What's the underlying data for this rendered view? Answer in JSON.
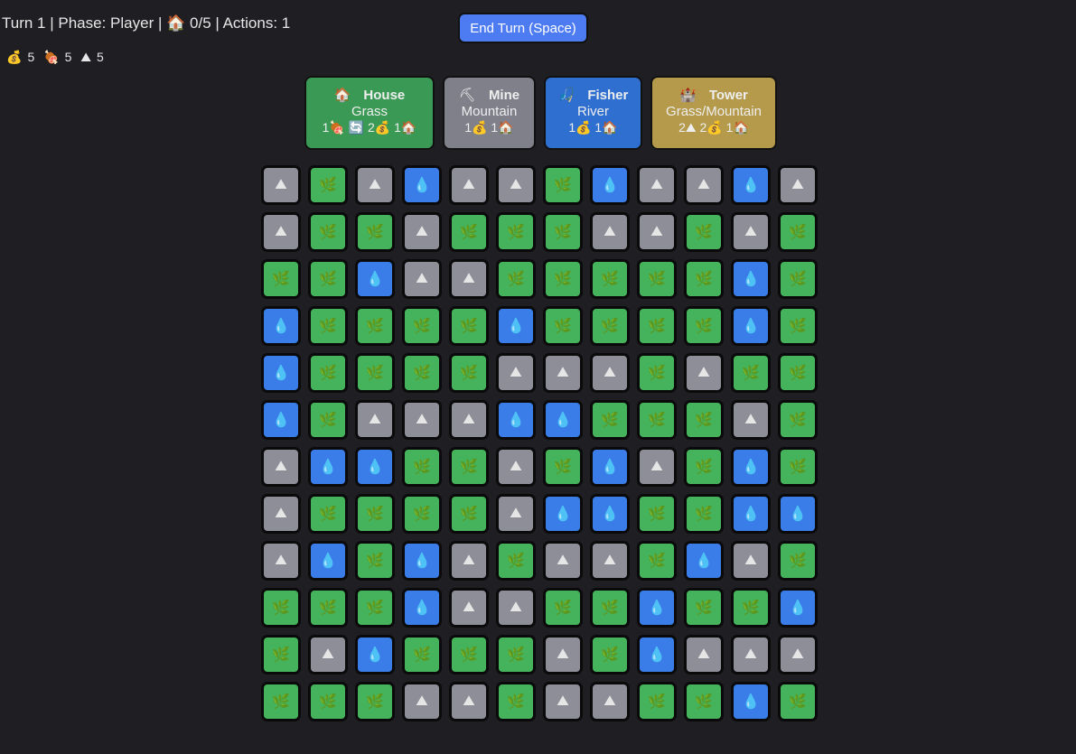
{
  "status": {
    "turn": "Turn 1",
    "phase": "Phase: Player",
    "houses_icon": "🏠",
    "houses": "0/5",
    "actions": "Actions: 1"
  },
  "resources": [
    {
      "icon": "💰",
      "name": "gold",
      "value": "5"
    },
    {
      "icon": "🍖",
      "name": "food",
      "value": "5"
    },
    {
      "icon": "⛰",
      "name": "stone",
      "value": "5"
    }
  ],
  "end_turn_label": "End Turn (Space)",
  "buildings": [
    {
      "icon": "🏠",
      "name": "House",
      "terrain": "Grass",
      "cost": "1🍖 🔄 2💰 1🏠",
      "color": "#3a9a55",
      "width": 144
    },
    {
      "icon": "⛏",
      "name": "Mine",
      "terrain": "Mountain",
      "cost": "1💰 1🏠",
      "color": "#80808b",
      "width": 103
    },
    {
      "icon": "🎣",
      "name": "Fisher",
      "terrain": "River",
      "cost": "1💰 1🏠",
      "color": "#2f6fd0",
      "width": 109
    },
    {
      "icon": "🏰",
      "name": "Tower",
      "terrain": "Grass/Mountain",
      "cost": "2⛰ 2💰 1🏠",
      "color": "#b49a4a",
      "width": 140
    }
  ],
  "terrain_types": {
    "G": {
      "name": "grass",
      "icon": "🌿",
      "color": "#45b35c"
    },
    "M": {
      "name": "mountain",
      "icon": "⛰",
      "color": "#8e8e99"
    },
    "W": {
      "name": "river",
      "icon": "💧",
      "color": "#3b7de8"
    }
  },
  "grid": [
    "MGMWMMGWMMWM",
    "MGGMGGGMMGMG",
    "GGWMMGGGGGWG",
    "WGGGGWGGGGWG",
    "WGGGGMMMGMGG",
    "WGMMMWWGGGMG",
    "MWWGGMGWMGWG",
    "MGGGGMWWGGWW",
    "MWGWMGMMGWMG",
    "GGGWMMGGWGGW",
    "GMWGGGMGWMMM",
    "GGGMMGMMGGWG"
  ]
}
